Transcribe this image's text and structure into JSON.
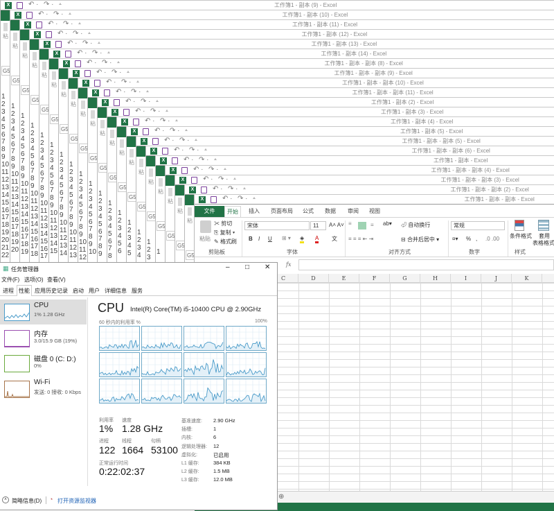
{
  "background_windows": {
    "titles": [
      "工作簿1 - 副本 (9) - Excel",
      "工作簿1 - 副本 (10) - Excel",
      "工作簿1 - 副本 (11) - Excel",
      "工作簿1 - 副本 (12) - Excel",
      "工作簿1 - 副本 (13) - Excel",
      "工作簿1 - 副本 (14) - Excel",
      "工作簿1 - 副本 - 副本 (8) - Excel",
      "工作簿1 - 副本 - 副本 (9) - Excel",
      "工作簿1 - 副本 - 副本 (10) - Excel",
      "工作簿1 - 副本 - 副本 (11) - Excel",
      "工作簿1 - 副本 (2) - Excel",
      "工作簿1 - 副本 (3) - Excel",
      "工作簿1 - 副本 (4) - Excel",
      "工作簿1 - 副本 (5) - Excel",
      "工作簿1 - 副本 - 副本 (5) - Excel",
      "工作簿1 - 副本 - 副本 (6) - Excel",
      "工作簿1 - 副本 - Excel",
      "工作簿1 - 副本 - 副本 (4) - Excel",
      "工作簿1 - 副本 - 副本 (3) - Excel",
      "工作簿1 - 副本 - 副本 (2) - Excel"
    ],
    "paste_fragment": "粘",
    "name_box_fragment": "G5"
  },
  "excel": {
    "title": "工作簿1 - 副本 - 副本 - Excel",
    "accent": "#217346",
    "tabs": [
      "文件",
      "开始",
      "插入",
      "页面布局",
      "公式",
      "数据",
      "审阅",
      "视图"
    ],
    "clipboard": {
      "paste": "粘贴",
      "cut": "剪切",
      "copy": "复制",
      "format_painter": "格式刷",
      "label": "剪贴板"
    },
    "font": {
      "name": "宋体",
      "size": "11",
      "bold": "B",
      "italic": "I",
      "underline": "U",
      "phonetic": "文",
      "label": "字体"
    },
    "alignment": {
      "wrap": "自动换行",
      "merge": "合并后居中",
      "label": "对齐方式"
    },
    "number": {
      "format": "常规",
      "percent": "%",
      "comma": ",",
      "label": "数字"
    },
    "styles": {
      "conditional": "条件格式",
      "table_line1": "套用",
      "table_line2": "表格格式",
      "label": "样式"
    },
    "formula_bar": {
      "fx": "fx",
      "value": ""
    },
    "columns": [
      "C",
      "D",
      "E",
      "F",
      "G",
      "H",
      "I",
      "J",
      "K"
    ]
  },
  "task_manager": {
    "title": "任务管理器",
    "menu": [
      "文件(F)",
      "选项(O)",
      "查看(V)"
    ],
    "tabs": [
      "进程",
      "性能",
      "应用历史记录",
      "启动",
      "用户",
      "详细信息",
      "服务"
    ],
    "active_tab": "性能",
    "resources": [
      {
        "name": "CPU",
        "sub": "1% 1.28 GHz",
        "color": "#4a9bc9"
      },
      {
        "name": "内存",
        "sub": "3.0/15.9 GB (19%)",
        "color": "#9b4fb0"
      },
      {
        "name": "磁盘 0 (C: D:)",
        "sub": "0%",
        "color": "#6aaa3c"
      },
      {
        "name": "Wi-Fi",
        "sub": "发送: 0 接收: 0 Kbps",
        "color": "#a7744a"
      }
    ],
    "cpu": {
      "heading": "CPU",
      "model": "Intel(R) Core(TM) i5-10400 CPU @ 2.90GHz",
      "graph_label": "60 秒内的利用率 %",
      "graph_max": "100%",
      "logical_cores_shown": 12,
      "stats": {
        "utilization_label": "利用率",
        "utilization": "1%",
        "speed_label": "速度",
        "speed": "1.28 GHz",
        "processes_label": "进程",
        "processes": "122",
        "threads_label": "线程",
        "threads": "1664",
        "handles_label": "句柄",
        "handles": "53100",
        "uptime_label": "正常运行时间",
        "uptime": "0:22:02:37"
      },
      "specs": [
        {
          "k": "基准速度:",
          "v": "2.90 GHz"
        },
        {
          "k": "插槽:",
          "v": "1"
        },
        {
          "k": "内核:",
          "v": "6"
        },
        {
          "k": "逻辑处理器:",
          "v": "12"
        },
        {
          "k": "虚拟化:",
          "v": "已启用"
        },
        {
          "k": "L1 缓存:",
          "v": "384 KB"
        },
        {
          "k": "L2 缓存:",
          "v": "1.5 MB"
        },
        {
          "k": "L3 缓存:",
          "v": "12.0 MB"
        }
      ]
    },
    "footer": {
      "fewer_details": "简略信息(D)",
      "resource_monitor": "打开资源监视器"
    }
  }
}
